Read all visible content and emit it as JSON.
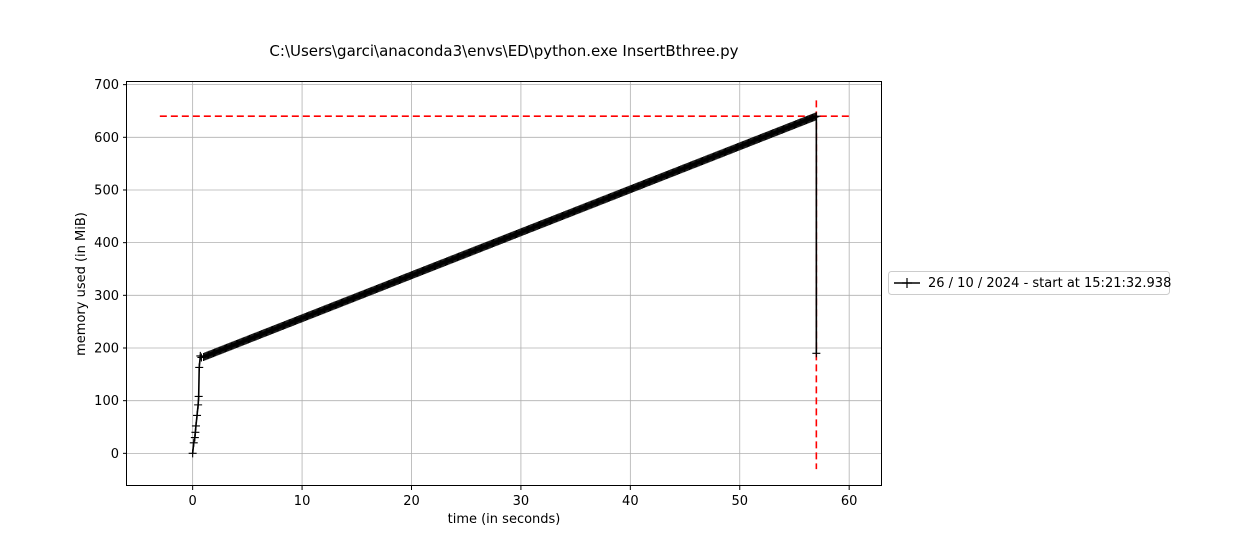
{
  "chart_data": {
    "type": "line",
    "title": "C:\\Users\\garci\\anaconda3\\envs\\ED\\python.exe InsertBthree.py",
    "xlabel": "time (in seconds)",
    "ylabel": "memory used (in MiB)",
    "xlim": [
      -6,
      63
    ],
    "ylim": [
      -62,
      705
    ],
    "xticks": [
      0,
      10,
      20,
      30,
      40,
      50,
      60
    ],
    "yticks": [
      0,
      100,
      200,
      300,
      400,
      500,
      600,
      700
    ],
    "grid": true,
    "legend_position": "right, outside plot",
    "series": [
      {
        "name": "26 / 10 / 2024 - start at 15:21:32.938",
        "color": "#000000",
        "marker": "+",
        "x": [
          0.0,
          0.1,
          0.2,
          0.25,
          0.3,
          0.4,
          0.5,
          0.55,
          0.6,
          0.7,
          0.8,
          1.0,
          57.0
        ],
        "y": [
          0,
          20,
          30,
          40,
          52,
          72,
          92,
          108,
          163,
          185,
          182,
          183,
          640
        ],
        "drop": {
          "x": 57.0,
          "y": 190
        }
      }
    ],
    "reference_lines": {
      "color": "#ff0000",
      "style": "dashed",
      "peak_memory_y": 640,
      "peak_time_x": 57.0
    }
  }
}
